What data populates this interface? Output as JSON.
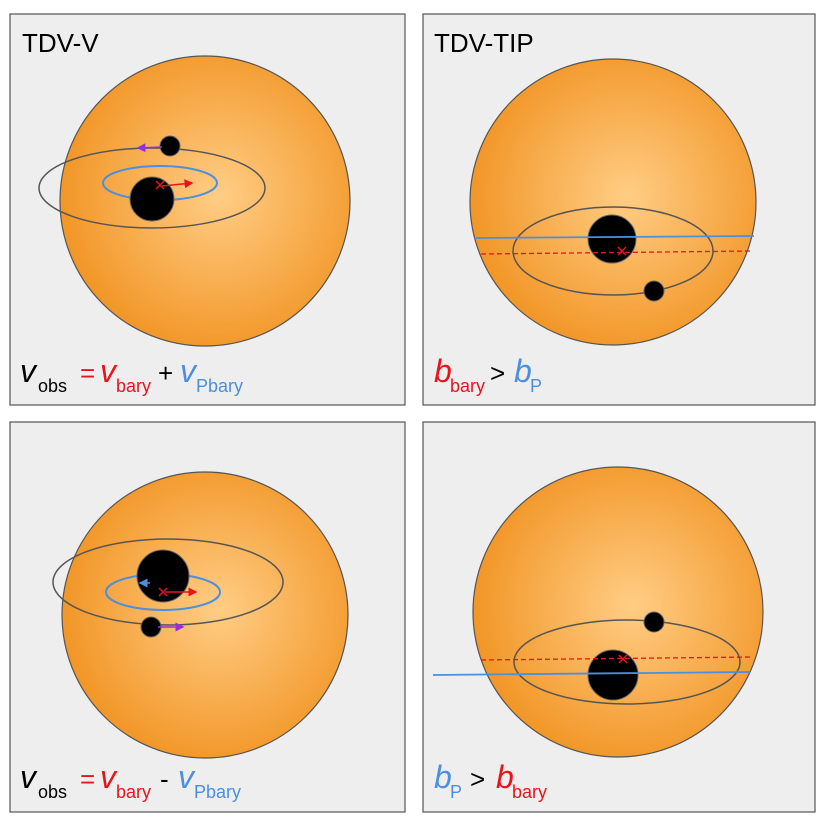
{
  "panels": [
    {
      "title": "TDV-V",
      "equation": [
        {
          "text": "v",
          "sub": "obs"
        },
        {
          "text": "="
        },
        {
          "text": "v",
          "sub": "bary"
        },
        {
          "text": "+"
        },
        {
          "text": "v",
          "sub": "Pbary"
        }
      ]
    },
    {
      "title": "TDV-TIP",
      "equation": [
        {
          "text": "b",
          "sub": "bary"
        },
        {
          "text": ">"
        },
        {
          "text": "b",
          "sub": "P"
        }
      ]
    },
    {
      "equation": [
        {
          "text": "v",
          "sub": "obs"
        },
        {
          "text": "="
        },
        {
          "text": "v",
          "sub": "bary"
        },
        {
          "text": "-"
        },
        {
          "text": "v",
          "sub": "Pbary"
        }
      ]
    },
    {
      "equation": [
        {
          "text": "b",
          "sub": "P"
        },
        {
          "text": ">"
        },
        {
          "text": "b",
          "sub": "bary"
        }
      ]
    }
  ]
}
